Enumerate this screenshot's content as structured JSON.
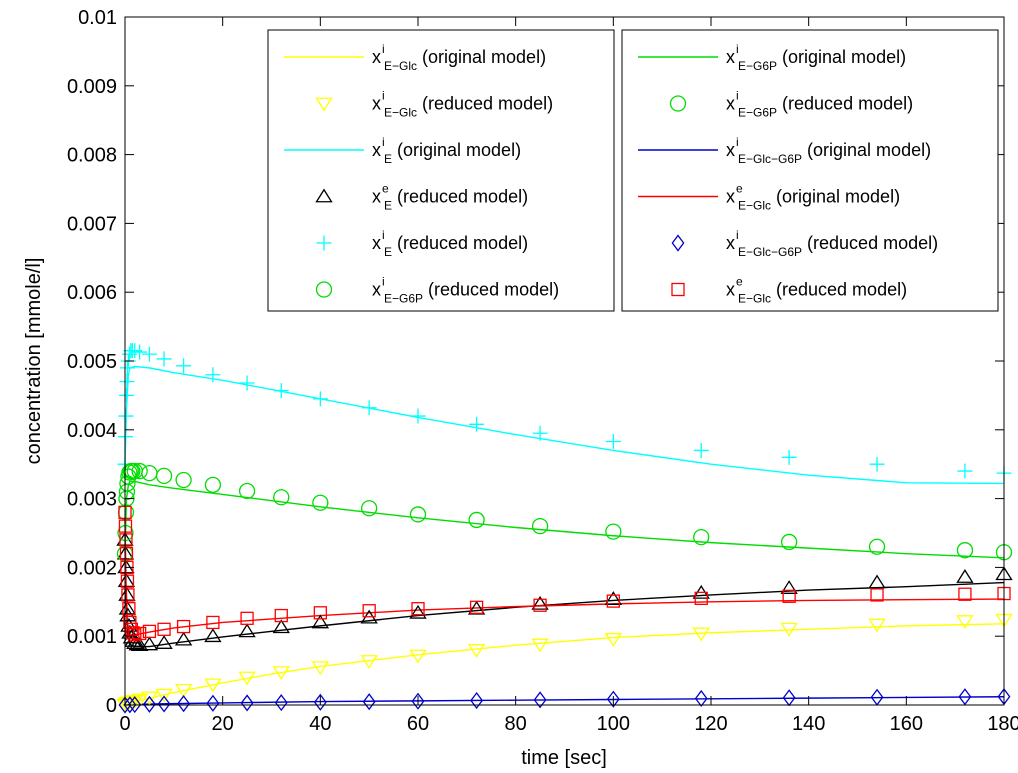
{
  "chart_data": {
    "type": "line",
    "title": "",
    "xlabel": "time [sec]",
    "ylabel": "concentration [mmole/l]",
    "xlim": [
      0,
      180
    ],
    "ylim": [
      0,
      0.01
    ],
    "grid": false,
    "legend_position": "top",
    "x_ticks": [
      {
        "value": 0,
        "label": "0"
      },
      {
        "value": 20,
        "label": "20"
      },
      {
        "value": 40,
        "label": "40"
      },
      {
        "value": 60,
        "label": "60"
      },
      {
        "value": 80,
        "label": "80"
      },
      {
        "value": 100,
        "label": "100"
      },
      {
        "value": 120,
        "label": "120"
      },
      {
        "value": 140,
        "label": "140"
      },
      {
        "value": 160,
        "label": "160"
      },
      {
        "value": 180,
        "label": "180"
      }
    ],
    "y_ticks": [
      {
        "value": 0,
        "label": "0"
      },
      {
        "value": 0.001,
        "label": "0.001"
      },
      {
        "value": 0.002,
        "label": "0.002"
      },
      {
        "value": 0.003,
        "label": "0.003"
      },
      {
        "value": 0.004,
        "label": "0.004"
      },
      {
        "value": 0.005,
        "label": "0.005"
      },
      {
        "value": 0.006,
        "label": "0.006"
      },
      {
        "value": 0.007,
        "label": "0.007"
      },
      {
        "value": 0.008,
        "label": "0.008"
      },
      {
        "value": 0.009,
        "label": "0.009"
      },
      {
        "value": 0.01,
        "label": "0.01"
      }
    ],
    "series": [
      {
        "name": "x^i_{E-Glc} (original model)",
        "var": "x",
        "sup": "i",
        "sub": "E−Glc",
        "desc": "(original model)",
        "kind": "line",
        "color": "#ffff00",
        "x": [
          0,
          1,
          2,
          5,
          10,
          20,
          30,
          40,
          60,
          80,
          100,
          120,
          140,
          160,
          180
        ],
        "y": [
          0,
          2e-05,
          5e-05,
          0.0001,
          0.00018,
          0.00032,
          0.00045,
          0.00056,
          0.00073,
          0.00087,
          0.00098,
          0.00105,
          0.0011,
          0.00115,
          0.00118
        ]
      },
      {
        "name": "x^e_{E} (original model)",
        "var": "x",
        "sup": "e",
        "sub": "E",
        "desc": "(original model)",
        "kind": "line",
        "color": "#000000",
        "x": [
          0,
          0.2,
          0.5,
          1,
          2,
          5,
          10,
          20,
          40,
          60,
          80,
          100,
          120,
          140,
          160,
          180
        ],
        "y": [
          0.0025,
          0.0016,
          0.0011,
          0.00088,
          0.00085,
          0.00085,
          0.0009,
          0.00099,
          0.00115,
          0.0013,
          0.00142,
          0.00152,
          0.0016,
          0.00167,
          0.00172,
          0.00178
        ]
      },
      {
        "name": "x^i_{E} (original model)",
        "var": "x",
        "sup": "i",
        "sub": "E",
        "desc": "(original model)",
        "kind": "line",
        "color": "#00ffff",
        "x": [
          0,
          0.3,
          0.7,
          1,
          2,
          5,
          10,
          20,
          40,
          60,
          80,
          100,
          120,
          140,
          160,
          180
        ],
        "y": [
          0.0035,
          0.0043,
          0.0048,
          0.0049,
          0.00492,
          0.0049,
          0.00483,
          0.00472,
          0.00445,
          0.00418,
          0.00393,
          0.0037,
          0.0035,
          0.00334,
          0.00323,
          0.00322
        ]
      },
      {
        "name": "x^i_{E-G6P} (original model)",
        "var": "x",
        "sup": "i",
        "sub": "E−G6P",
        "desc": "(original model)",
        "kind": "line",
        "color": "#00dd00",
        "x": [
          0,
          0.3,
          0.7,
          1,
          2,
          5,
          10,
          20,
          40,
          60,
          80,
          100,
          120,
          140,
          160,
          180
        ],
        "y": [
          0.0022,
          0.003,
          0.0032,
          0.00325,
          0.00325,
          0.0032,
          0.00315,
          0.00306,
          0.00288,
          0.00272,
          0.00258,
          0.00246,
          0.00236,
          0.00228,
          0.0022,
          0.00214
        ]
      },
      {
        "name": "x^i_{E-Glc-G6P} (original model)",
        "var": "x",
        "sup": "i",
        "sub": "E−Glc−G6P",
        "desc": "(original model)",
        "kind": "line",
        "color": "#0000cc",
        "x": [
          0,
          2,
          10,
          20,
          40,
          60,
          80,
          100,
          120,
          140,
          160,
          180
        ],
        "y": [
          0,
          1e-05,
          2e-05,
          3e-05,
          5e-05,
          6e-05,
          7e-05,
          8e-05,
          9e-05,
          0.0001,
          0.00011,
          0.00012
        ]
      },
      {
        "name": "x^e_{E-Glc} (original model)",
        "var": "x",
        "sup": "e",
        "sub": "E−Glc",
        "desc": "(original model)",
        "kind": "line",
        "color": "#ff0000",
        "x": [
          0,
          0.2,
          0.5,
          1,
          2,
          5,
          10,
          20,
          40,
          60,
          80,
          100,
          120,
          140,
          160,
          180
        ],
        "y": [
          0.0027,
          0.0018,
          0.0012,
          0.00102,
          0.00102,
          0.00106,
          0.00112,
          0.0012,
          0.0013,
          0.00138,
          0.00143,
          0.00147,
          0.0015,
          0.00152,
          0.00153,
          0.00154
        ]
      },
      {
        "name": "x^i_{E-Glc} (reduced model)",
        "var": "x",
        "sup": "i",
        "sub": "E−Glc",
        "desc": "(reduced model)",
        "kind": "marker",
        "marker": "triangle-down",
        "color": "#ffff00",
        "x": [
          0,
          0.3,
          0.6,
          1,
          1.5,
          2,
          3,
          5,
          8,
          12,
          18,
          25,
          32,
          40,
          50,
          60,
          72,
          85,
          100,
          118,
          136,
          154,
          172,
          180
        ],
        "y": [
          0,
          2e-05,
          3e-05,
          4e-05,
          5e-05,
          6e-05,
          8e-05,
          0.00011,
          0.00015,
          0.00022,
          0.0003,
          0.0004,
          0.00048,
          0.00055,
          0.00064,
          0.00072,
          0.0008,
          0.00088,
          0.00096,
          0.00104,
          0.00111,
          0.00117,
          0.00122,
          0.00124
        ]
      },
      {
        "name": "x^e_{E} (reduced model)",
        "var": "x",
        "sup": "e",
        "sub": "E",
        "desc": "(reduced model)",
        "kind": "marker",
        "marker": "triangle-up",
        "color": "#000000",
        "x": [
          0,
          0.1,
          0.2,
          0.3,
          0.4,
          0.5,
          0.6,
          0.8,
          1,
          1.3,
          1.6,
          2,
          2.5,
          3,
          5,
          8,
          12,
          18,
          25,
          32,
          40,
          50,
          60,
          72,
          85,
          100,
          118,
          136,
          154,
          172,
          180
        ],
        "y": [
          0.0024,
          0.0022,
          0.002,
          0.0018,
          0.0016,
          0.0014,
          0.0013,
          0.00115,
          0.00105,
          0.00098,
          0.00093,
          0.0009,
          0.00088,
          0.00087,
          0.00088,
          0.0009,
          0.00095,
          0.001,
          0.00107,
          0.00113,
          0.0012,
          0.00127,
          0.00134,
          0.0014,
          0.00147,
          0.00154,
          0.00163,
          0.0017,
          0.00178,
          0.00186,
          0.0019
        ]
      },
      {
        "name": "x^i_{E} (reduced model)",
        "var": "x",
        "sup": "i",
        "sub": "E",
        "desc": "(reduced model)",
        "kind": "marker",
        "marker": "plus",
        "color": "#00ffff",
        "x": [
          0,
          0.1,
          0.2,
          0.3,
          0.4,
          0.5,
          0.7,
          0.9,
          1.2,
          1.5,
          2,
          3,
          5,
          8,
          12,
          18,
          25,
          32,
          40,
          50,
          60,
          72,
          85,
          100,
          118,
          136,
          154,
          172,
          180
        ],
        "y": [
          0.0035,
          0.0039,
          0.0042,
          0.0045,
          0.0047,
          0.0049,
          0.005,
          0.0051,
          0.00515,
          0.00515,
          0.00515,
          0.00513,
          0.0051,
          0.00503,
          0.00493,
          0.0048,
          0.00468,
          0.00457,
          0.00445,
          0.00432,
          0.0042,
          0.00408,
          0.00395,
          0.00383,
          0.0037,
          0.0036,
          0.0035,
          0.0034,
          0.00337
        ]
      },
      {
        "name": "x^i_{E-G6P} (reduced model)",
        "var": "x",
        "sup": "i",
        "sub": "E−G6P",
        "desc": "(reduced model)",
        "kind": "marker",
        "marker": "circle",
        "color": "#00dd00",
        "x": [
          0,
          0.1,
          0.2,
          0.3,
          0.4,
          0.5,
          0.7,
          0.9,
          1.2,
          1.5,
          2,
          3,
          5,
          8,
          12,
          18,
          25,
          32,
          40,
          50,
          60,
          72,
          85,
          100,
          118,
          136,
          154,
          172,
          180
        ],
        "y": [
          0.0022,
          0.0025,
          0.0028,
          0.003,
          0.0031,
          0.00322,
          0.00332,
          0.00338,
          0.0034,
          0.0034,
          0.0034,
          0.0034,
          0.00337,
          0.00333,
          0.00327,
          0.0032,
          0.00311,
          0.00302,
          0.00294,
          0.00286,
          0.00277,
          0.00269,
          0.0026,
          0.00252,
          0.00244,
          0.00237,
          0.0023,
          0.00225,
          0.00222
        ]
      },
      {
        "name": "x^i_{E-Glc-G6P} (reduced model)",
        "var": "x",
        "sup": "i",
        "sub": "E−Glc−G6P",
        "desc": "(reduced model)",
        "kind": "marker",
        "marker": "diamond",
        "color": "#0000cc",
        "x": [
          0,
          1,
          2,
          5,
          8,
          12,
          18,
          25,
          32,
          40,
          50,
          60,
          72,
          85,
          100,
          118,
          136,
          154,
          172,
          180
        ],
        "y": [
          0,
          3e-06,
          6e-06,
          1e-05,
          1.5e-05,
          2e-05,
          2.5e-05,
          3e-05,
          3.5e-05,
          4e-05,
          4.8e-05,
          5.5e-05,
          6.5e-05,
          7.5e-05,
          8.5e-05,
          9.5e-05,
          0.000105,
          0.000112,
          0.00012,
          0.000122
        ]
      },
      {
        "name": "x^e_{E-Glc} (reduced model)",
        "var": "x",
        "sup": "e",
        "sub": "E−Glc",
        "desc": "(reduced model)",
        "kind": "marker",
        "marker": "square",
        "color": "#ff0000",
        "x": [
          0,
          0.1,
          0.2,
          0.3,
          0.4,
          0.5,
          0.6,
          0.8,
          1,
          1.3,
          1.6,
          2,
          3,
          5,
          8,
          12,
          18,
          25,
          32,
          40,
          50,
          60,
          72,
          85,
          100,
          118,
          136,
          154,
          172,
          180
        ],
        "y": [
          0.0028,
          0.0026,
          0.0024,
          0.0022,
          0.002,
          0.0018,
          0.0016,
          0.0014,
          0.0012,
          0.0011,
          0.00105,
          0.00102,
          0.00104,
          0.00107,
          0.0011,
          0.00114,
          0.0012,
          0.00126,
          0.0013,
          0.00134,
          0.00137,
          0.0014,
          0.00142,
          0.00145,
          0.00151,
          0.00155,
          0.00158,
          0.0016,
          0.00161,
          0.00162
        ]
      }
    ],
    "legends": [
      {
        "entries": [
          0,
          6,
          2,
          7,
          8,
          9
        ]
      },
      {
        "entries": [
          3,
          9,
          4,
          5,
          10,
          11
        ]
      }
    ]
  }
}
